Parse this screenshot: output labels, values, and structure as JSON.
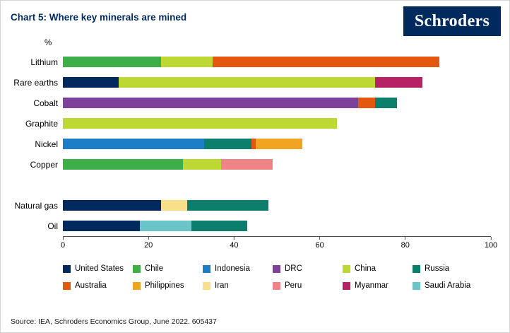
{
  "header": {
    "title": "Chart 5: Where key minerals are mined",
    "logo_text": "Schroders",
    "brand_color": "#002a5e"
  },
  "chart_data": {
    "type": "bar",
    "orientation": "horizontal",
    "stacked": true,
    "unit_label": "%",
    "xlim": [
      0,
      100
    ],
    "x_ticks": [
      0,
      20,
      40,
      60,
      80,
      100
    ],
    "grid": false,
    "legend_position": "bottom",
    "series_colors": {
      "United States": "#002a5e",
      "Chile": "#3eae48",
      "Indonesia": "#1d7dc5",
      "DRC": "#7d4199",
      "China": "#bdd733",
      "Russia": "#0b7f6b",
      "Australia": "#e3570f",
      "Philippines": "#f0a422",
      "Iran": "#f8e08a",
      "Peru": "#ee8486",
      "Myanmar": "#b62264",
      "Saudi Arabia": "#6ac4c8"
    },
    "bars": [
      {
        "category": "Lithium",
        "gap_before": false,
        "segments": [
          {
            "name": "Chile",
            "value": 23
          },
          {
            "name": "China",
            "value": 12
          },
          {
            "name": "Australia",
            "value": 53
          }
        ]
      },
      {
        "category": "Rare earths",
        "gap_before": false,
        "segments": [
          {
            "name": "United States",
            "value": 13
          },
          {
            "name": "China",
            "value": 60
          },
          {
            "name": "Myanmar",
            "value": 11
          }
        ]
      },
      {
        "category": "Cobalt",
        "gap_before": false,
        "segments": [
          {
            "name": "DRC",
            "value": 69
          },
          {
            "name": "Australia",
            "value": 4
          },
          {
            "name": "Russia",
            "value": 5
          }
        ]
      },
      {
        "category": "Graphite",
        "gap_before": false,
        "segments": [
          {
            "name": "China",
            "value": 64
          }
        ]
      },
      {
        "category": "Nickel",
        "gap_before": false,
        "segments": [
          {
            "name": "Indonesia",
            "value": 33
          },
          {
            "name": "Russia",
            "value": 11
          },
          {
            "name": "Australia",
            "value": 1
          },
          {
            "name": "Philippines",
            "value": 11
          }
        ]
      },
      {
        "category": "Copper",
        "gap_before": false,
        "segments": [
          {
            "name": "Chile",
            "value": 28
          },
          {
            "name": "China",
            "value": 9
          },
          {
            "name": "Peru",
            "value": 12
          }
        ]
      },
      {
        "category": "Natural gas",
        "gap_before": true,
        "segments": [
          {
            "name": "United States",
            "value": 23
          },
          {
            "name": "Iran",
            "value": 6
          },
          {
            "name": "Russia",
            "value": 19
          }
        ]
      },
      {
        "category": "Oil",
        "gap_before": false,
        "segments": [
          {
            "name": "United States",
            "value": 18
          },
          {
            "name": "Saudi Arabia",
            "value": 12
          },
          {
            "name": "Russia",
            "value": 13
          }
        ]
      }
    ],
    "legend": [
      [
        "United States",
        "Chile",
        "Indonesia",
        "DRC",
        "China",
        "Russia"
      ],
      [
        "Australia",
        "Philippines",
        "Iran",
        "Peru",
        "Myanmar",
        "Saudi Arabia"
      ]
    ]
  },
  "footer": {
    "source": "Source: IEA, Schroders Economics Group, June 2022. 605437"
  }
}
